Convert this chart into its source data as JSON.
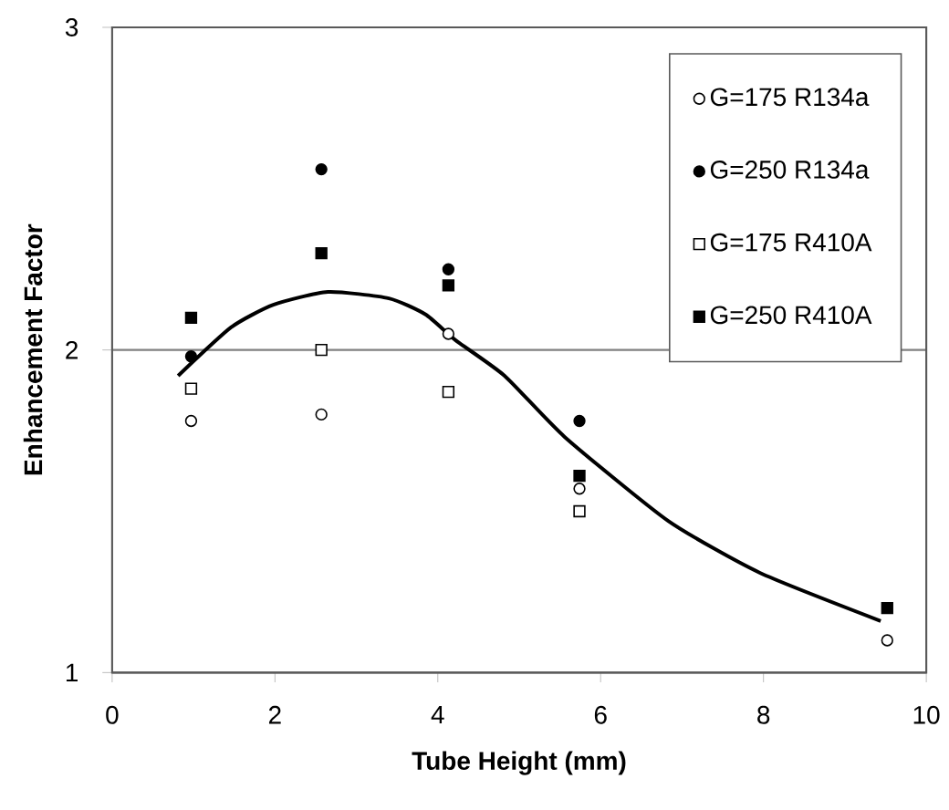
{
  "chart_data": {
    "type": "scatter",
    "xlabel": "Tube Height (mm)",
    "ylabel": "Enhancement Factor",
    "xlim": [
      0,
      10
    ],
    "ylim": [
      1,
      3
    ],
    "xticks": [
      0,
      2,
      4,
      6,
      8,
      10
    ],
    "yticks": [
      1,
      2,
      3
    ],
    "grid": "y",
    "legend": "top right",
    "series": [
      {
        "name": "G=175 R134a",
        "color": "#ffffff",
        "marker": "circle",
        "x": [
          0.97,
          2.57,
          4.13,
          5.74,
          9.52
        ],
        "values": [
          1.78,
          1.8,
          2.05,
          1.57,
          1.1
        ]
      },
      {
        "name": "G=250 R134a",
        "color": "#000000",
        "marker": "circle",
        "x": [
          0.97,
          2.57,
          4.13,
          5.74
        ],
        "values": [
          1.98,
          2.56,
          2.25,
          1.78
        ]
      },
      {
        "name": "G=175 R410A",
        "color": "#ffffff",
        "marker": "square",
        "x": [
          0.97,
          2.57,
          4.13,
          5.74
        ],
        "values": [
          1.88,
          2.0,
          1.87,
          1.5
        ]
      },
      {
        "name": "G=250 R410A",
        "color": "#000000",
        "marker": "square",
        "x": [
          0.97,
          2.57,
          4.13,
          5.74,
          9.52
        ],
        "values": [
          2.1,
          2.3,
          2.2,
          1.61,
          1.2
        ]
      },
      {
        "type": "line",
        "color": "#000000",
        "marker": "none",
        "x": [
          0.81,
          1.46,
          1.98,
          2.65,
          3.4,
          3.85,
          4.22,
          4.82,
          5.56,
          6.83,
          7.95,
          9.44
        ],
        "values": [
          1.92,
          2.07,
          2.14,
          2.18,
          2.16,
          2.11,
          2.03,
          1.92,
          1.73,
          1.47,
          1.31,
          1.16
        ]
      }
    ]
  }
}
